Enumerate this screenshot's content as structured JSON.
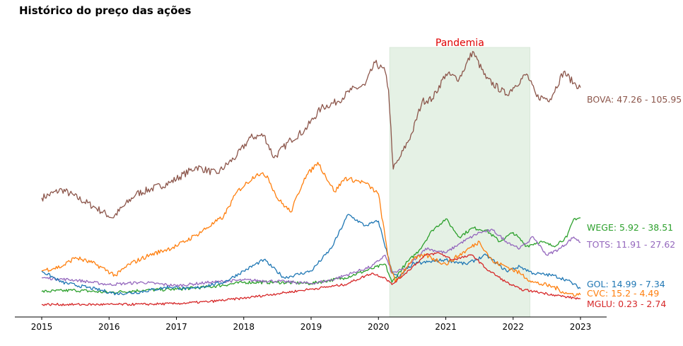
{
  "chart_data": {
    "type": "line",
    "title": "Histórico do preço das ações",
    "xlabel": "",
    "ylabel": "",
    "x_ticks": [
      "2015",
      "2016",
      "2017",
      "2018",
      "2019",
      "2020",
      "2021",
      "2022",
      "2023"
    ],
    "y_axis_visible": false,
    "grid": false,
    "legend": "none",
    "annotation": {
      "label": "Pandemia",
      "start": "2020-03",
      "end": "2022-04",
      "color": "#e00000",
      "fill": "#e5f1e5"
    },
    "series": [
      {
        "name": "BOVA",
        "color": "#8c564b",
        "end_label": "BOVA: 47.26 - 105.95",
        "points": [
          [
            2015.0,
            47.3
          ],
          [
            2015.3,
            51
          ],
          [
            2015.8,
            43
          ],
          [
            2016.05,
            38.5
          ],
          [
            2016.4,
            49
          ],
          [
            2016.9,
            54
          ],
          [
            2017.3,
            61
          ],
          [
            2017.6,
            58
          ],
          [
            2017.9,
            66
          ],
          [
            2018.1,
            74
          ],
          [
            2018.3,
            75
          ],
          [
            2018.45,
            65
          ],
          [
            2018.7,
            73
          ],
          [
            2018.9,
            77
          ],
          [
            2019.15,
            87
          ],
          [
            2019.4,
            90
          ],
          [
            2019.6,
            95
          ],
          [
            2019.8,
            97
          ],
          [
            2019.95,
            107
          ],
          [
            2020.1,
            103
          ],
          [
            2020.15,
            95
          ],
          [
            2020.22,
            60
          ],
          [
            2020.3,
            64
          ],
          [
            2020.5,
            76
          ],
          [
            2020.65,
            90
          ],
          [
            2020.8,
            91
          ],
          [
            2021.0,
            102
          ],
          [
            2021.2,
            100
          ],
          [
            2021.4,
            112
          ],
          [
            2021.6,
            100
          ],
          [
            2021.9,
            93
          ],
          [
            2022.0,
            96
          ],
          [
            2022.2,
            102
          ],
          [
            2022.35,
            92
          ],
          [
            2022.55,
            91
          ],
          [
            2022.75,
            103
          ],
          [
            2022.9,
            98
          ],
          [
            2023.0,
            96
          ]
        ]
      },
      {
        "name": "WEGE",
        "color": "#2ca02c",
        "end_label": "WEGE: 5.92 - 38.51",
        "points": [
          [
            2015.0,
            5.9
          ],
          [
            2015.5,
            6.5
          ],
          [
            2016.0,
            5.5
          ],
          [
            2016.5,
            6.5
          ],
          [
            2017.0,
            7
          ],
          [
            2017.5,
            8
          ],
          [
            2018.0,
            10
          ],
          [
            2018.5,
            10
          ],
          [
            2019.0,
            9.5
          ],
          [
            2019.5,
            12
          ],
          [
            2019.9,
            16
          ],
          [
            2020.1,
            18
          ],
          [
            2020.2,
            10
          ],
          [
            2020.4,
            18
          ],
          [
            2020.6,
            24
          ],
          [
            2020.8,
            33
          ],
          [
            2021.0,
            38
          ],
          [
            2021.2,
            30
          ],
          [
            2021.4,
            34
          ],
          [
            2021.6,
            33
          ],
          [
            2021.8,
            28
          ],
          [
            2022.0,
            32
          ],
          [
            2022.2,
            26
          ],
          [
            2022.4,
            28
          ],
          [
            2022.6,
            26
          ],
          [
            2022.8,
            30
          ],
          [
            2022.9,
            38
          ],
          [
            2023.0,
            38.5
          ]
        ]
      },
      {
        "name": "TOTS",
        "color": "#9467bd",
        "end_label": "TOTS: 11.91 - 27.62",
        "points": [
          [
            2015.0,
            12
          ],
          [
            2015.5,
            11
          ],
          [
            2016.0,
            9
          ],
          [
            2016.5,
            10
          ],
          [
            2017.0,
            8.5
          ],
          [
            2017.5,
            10
          ],
          [
            2018.0,
            11
          ],
          [
            2018.5,
            10.5
          ],
          [
            2019.0,
            9.5
          ],
          [
            2019.3,
            11
          ],
          [
            2019.6,
            14
          ],
          [
            2019.9,
            17
          ],
          [
            2020.1,
            22
          ],
          [
            2020.2,
            14
          ],
          [
            2020.4,
            16
          ],
          [
            2020.7,
            25
          ],
          [
            2021.0,
            23
          ],
          [
            2021.2,
            27
          ],
          [
            2021.5,
            32
          ],
          [
            2021.7,
            33
          ],
          [
            2021.9,
            28
          ],
          [
            2022.1,
            25
          ],
          [
            2022.3,
            30
          ],
          [
            2022.5,
            22
          ],
          [
            2022.7,
            25
          ],
          [
            2022.9,
            30
          ],
          [
            2023.0,
            27.6
          ]
        ]
      },
      {
        "name": "GOL",
        "color": "#1f77b4",
        "end_label": "GOL: 14.99 - 7.34",
        "points": [
          [
            2015.0,
            15
          ],
          [
            2015.3,
            10
          ],
          [
            2015.8,
            7
          ],
          [
            2016.1,
            5
          ],
          [
            2016.4,
            5.5
          ],
          [
            2016.9,
            8
          ],
          [
            2017.2,
            7
          ],
          [
            2017.7,
            10
          ],
          [
            2018.0,
            15
          ],
          [
            2018.3,
            20
          ],
          [
            2018.6,
            12
          ],
          [
            2019.0,
            15
          ],
          [
            2019.3,
            25
          ],
          [
            2019.55,
            40
          ],
          [
            2019.8,
            35
          ],
          [
            2020.0,
            37
          ],
          [
            2020.2,
            15
          ],
          [
            2020.3,
            12
          ],
          [
            2020.5,
            18
          ],
          [
            2021.0,
            20
          ],
          [
            2021.3,
            18
          ],
          [
            2021.6,
            22
          ],
          [
            2021.9,
            15
          ],
          [
            2022.1,
            17
          ],
          [
            2022.3,
            14
          ],
          [
            2022.6,
            13
          ],
          [
            2022.8,
            11
          ],
          [
            2023.0,
            7.3
          ]
        ]
      },
      {
        "name": "CVC",
        "color": "#ff7f0e",
        "end_label": "CVC: 15.2 - 4.49",
        "points": [
          [
            2015.0,
            15.2
          ],
          [
            2015.3,
            17
          ],
          [
            2015.5,
            21
          ],
          [
            2015.8,
            18
          ],
          [
            2016.1,
            13
          ],
          [
            2016.3,
            18
          ],
          [
            2016.6,
            22
          ],
          [
            2017.0,
            26
          ],
          [
            2017.3,
            31
          ],
          [
            2017.7,
            39
          ],
          [
            2017.9,
            50
          ],
          [
            2018.2,
            58
          ],
          [
            2018.35,
            57
          ],
          [
            2018.5,
            47
          ],
          [
            2018.7,
            41
          ],
          [
            2018.9,
            56
          ],
          [
            2019.1,
            63
          ],
          [
            2019.35,
            50
          ],
          [
            2019.5,
            56
          ],
          [
            2019.8,
            54
          ],
          [
            2020.0,
            49
          ],
          [
            2020.15,
            20
          ],
          [
            2020.25,
            10
          ],
          [
            2020.5,
            20
          ],
          [
            2020.7,
            22
          ],
          [
            2021.0,
            18
          ],
          [
            2021.3,
            24
          ],
          [
            2021.5,
            28
          ],
          [
            2021.7,
            19
          ],
          [
            2021.9,
            17
          ],
          [
            2022.1,
            14
          ],
          [
            2022.3,
            10
          ],
          [
            2022.6,
            8
          ],
          [
            2022.8,
            5
          ],
          [
            2023.0,
            4.5
          ]
        ]
      },
      {
        "name": "MGLU",
        "color": "#d62728",
        "end_label": "MGLU: 0.23 - 2.74",
        "points": [
          [
            2015.0,
            0.23
          ],
          [
            2015.5,
            0.2
          ],
          [
            2016.0,
            0.2
          ],
          [
            2016.5,
            0.3
          ],
          [
            2017.0,
            0.6
          ],
          [
            2017.5,
            1.5
          ],
          [
            2018.0,
            3
          ],
          [
            2018.5,
            5
          ],
          [
            2019.0,
            7
          ],
          [
            2019.5,
            9
          ],
          [
            2019.9,
            14
          ],
          [
            2020.1,
            12
          ],
          [
            2020.2,
            9
          ],
          [
            2020.4,
            14
          ],
          [
            2020.7,
            22
          ],
          [
            2020.9,
            23
          ],
          [
            2021.1,
            20
          ],
          [
            2021.4,
            22
          ],
          [
            2021.6,
            16
          ],
          [
            2021.9,
            10
          ],
          [
            2022.1,
            7
          ],
          [
            2022.3,
            6
          ],
          [
            2022.6,
            4.5
          ],
          [
            2022.8,
            3.5
          ],
          [
            2023.0,
            2.7
          ]
        ]
      }
    ]
  }
}
